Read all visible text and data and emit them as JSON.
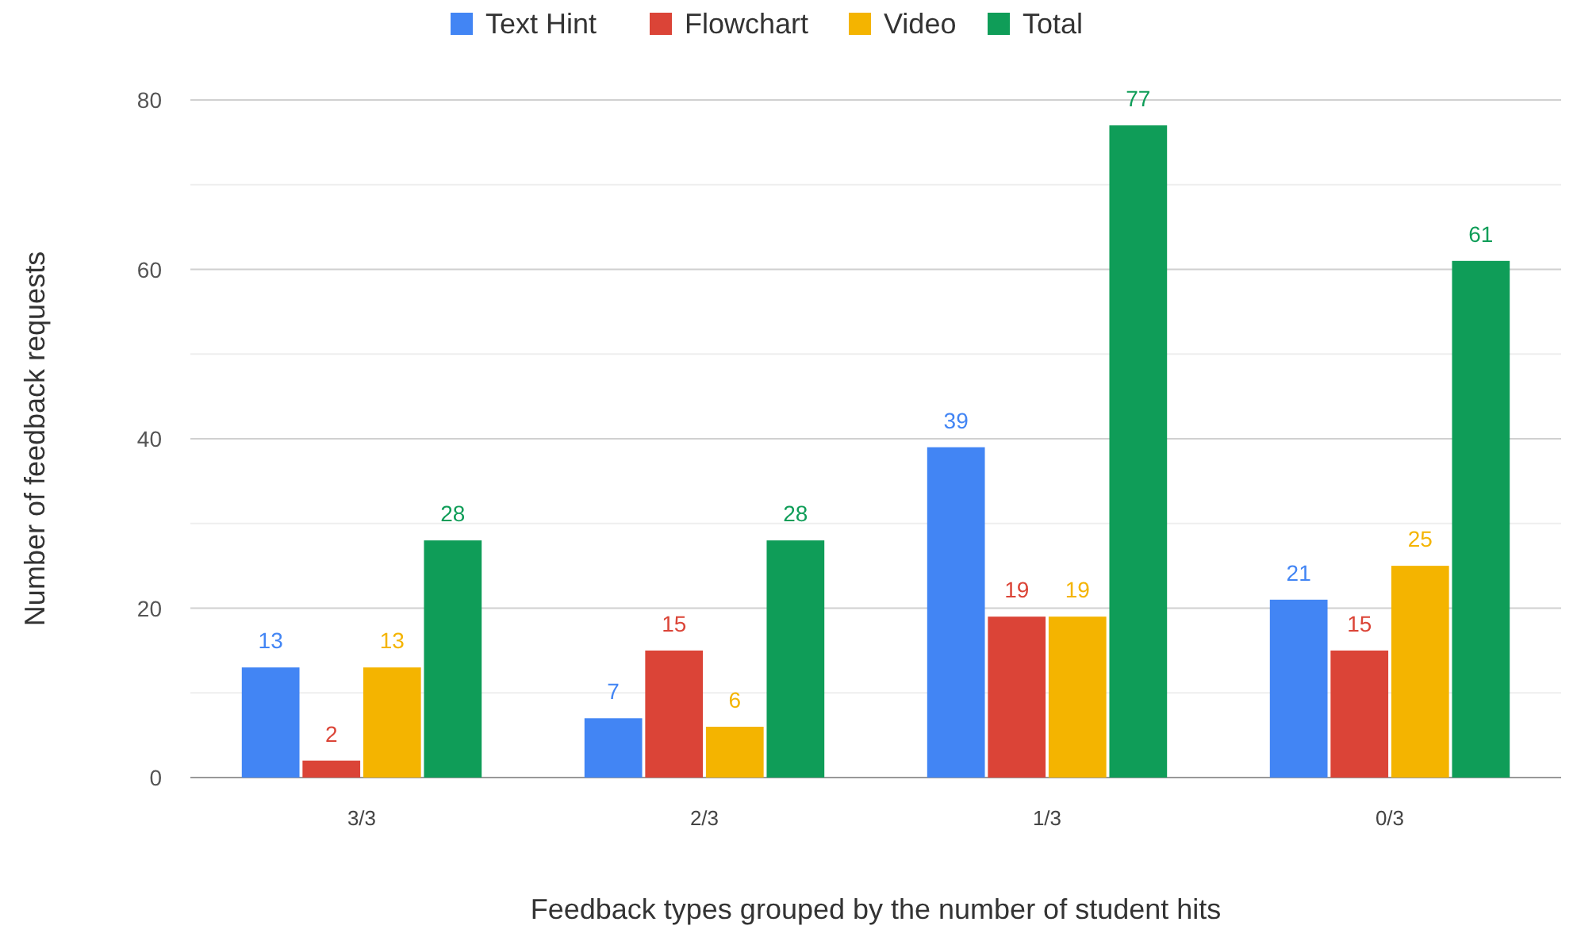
{
  "chart_data": {
    "type": "bar",
    "xlabel": "Feedback types grouped by the number of student hits",
    "ylabel": "Number of feedback requests",
    "categories": [
      "3/3",
      "2/3",
      "1/3",
      "0/3"
    ],
    "series": [
      {
        "name": "Text Hint",
        "color": "#4285f4",
        "values": [
          13,
          7,
          39,
          21
        ]
      },
      {
        "name": "Flowchart",
        "color": "#db4437",
        "values": [
          2,
          15,
          19,
          15
        ]
      },
      {
        "name": "Video",
        "color": "#f4b400",
        "values": [
          13,
          6,
          19,
          25
        ]
      },
      {
        "name": "Total",
        "color": "#0f9d58",
        "values": [
          28,
          28,
          77,
          61
        ]
      }
    ],
    "ylim": [
      0,
      80
    ],
    "yticks": [
      0,
      {
        "value": 10,
        "label": null
      },
      20,
      {
        "value": 30,
        "label": null
      },
      40,
      {
        "value": 50,
        "label": null
      },
      60,
      {
        "value": 70,
        "label": null
      },
      80
    ],
    "grid": "y",
    "legend": "top",
    "data_labels": true
  }
}
